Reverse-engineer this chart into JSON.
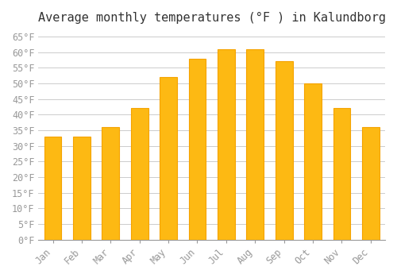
{
  "title": "Average monthly temperatures (°F ) in Kalundborg",
  "months": [
    "Jan",
    "Feb",
    "Mar",
    "Apr",
    "May",
    "Jun",
    "Jul",
    "Aug",
    "Sep",
    "Oct",
    "Nov",
    "Dec"
  ],
  "values": [
    33,
    33,
    36,
    42,
    52,
    58,
    61,
    61,
    57,
    50,
    42,
    36
  ],
  "bar_color": "#FDB913",
  "bar_edge_color": "#F5A300",
  "background_color": "#FFFFFF",
  "grid_color": "#CCCCCC",
  "ylim": [
    0,
    67
  ],
  "yticks": [
    0,
    5,
    10,
    15,
    20,
    25,
    30,
    35,
    40,
    45,
    50,
    55,
    60,
    65
  ],
  "title_fontsize": 11,
  "tick_fontsize": 8.5,
  "tick_color": "#999999",
  "font_family": "monospace"
}
